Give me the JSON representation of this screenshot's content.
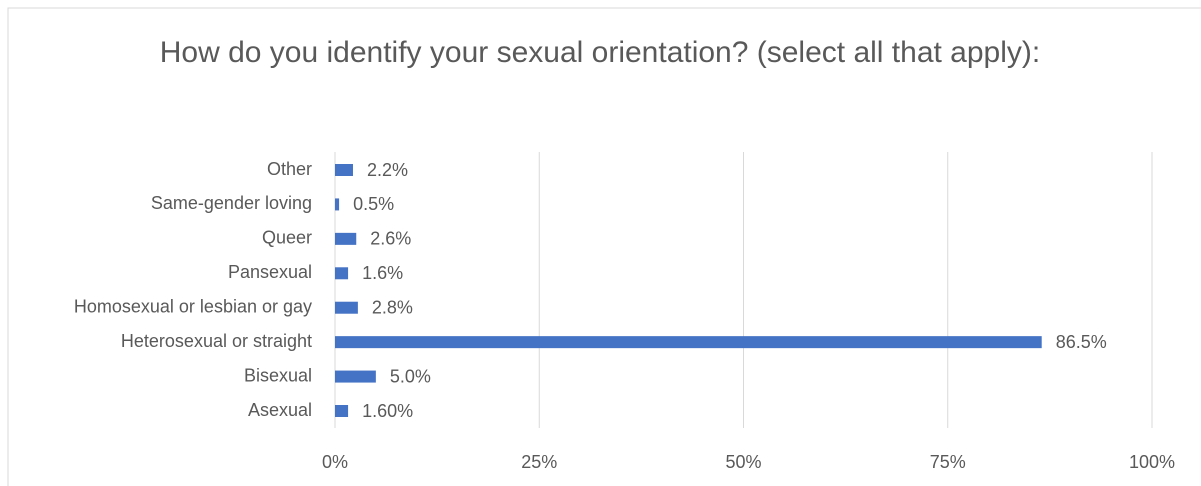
{
  "chart_data": {
    "type": "bar",
    "orientation": "horizontal",
    "title": "How do you identify your sexual orientation? (select all that apply):",
    "categories": [
      "Other",
      "Same-gender loving",
      "Queer",
      "Pansexual",
      "Homosexual or lesbian or gay",
      "Heterosexual or straight",
      "Bisexual",
      "Asexual"
    ],
    "values": [
      2.2,
      0.5,
      2.6,
      1.6,
      2.8,
      86.5,
      5.0,
      1.6
    ],
    "value_labels": [
      "2.2%",
      "0.5%",
      "2.6%",
      "1.6%",
      "2.8%",
      "86.5%",
      "5.0%",
      "1.60%"
    ],
    "color": "#4472c4",
    "xlim": [
      0,
      100
    ],
    "xticks": [
      {
        "value": 0,
        "label": "0%"
      },
      {
        "value": 25,
        "label": "25%"
      },
      {
        "value": 50,
        "label": "50%"
      },
      {
        "value": 75,
        "label": "75%"
      },
      {
        "value": 100,
        "label": "100%"
      }
    ],
    "grid": true
  }
}
